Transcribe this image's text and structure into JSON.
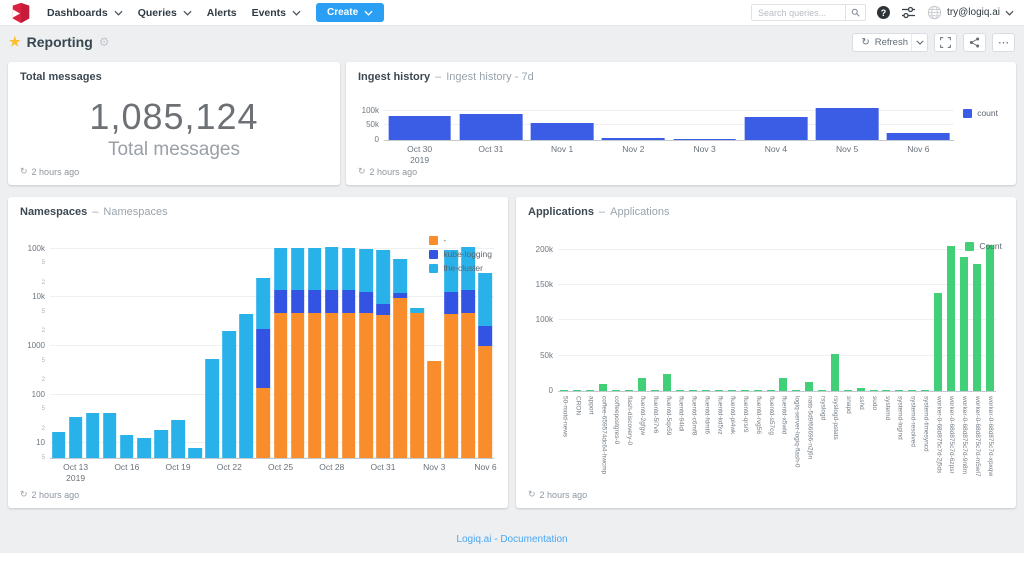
{
  "ui": {
    "dash": "–"
  },
  "icons": {
    "help": "?",
    "refresh": "↻",
    "ellipsis": "⋯",
    "star": "★",
    "gear": "⚙"
  },
  "nav": {
    "items": [
      {
        "label": "Dashboards"
      },
      {
        "label": "Queries"
      },
      {
        "label": "Alerts"
      },
      {
        "label": "Events"
      }
    ],
    "create_label": "Create",
    "search_placeholder": "Search queries...",
    "user": "try@logiq.ai"
  },
  "header": {
    "title": "Reporting",
    "refresh_label": "Refresh"
  },
  "panels": {
    "total_messages": {
      "title": "Total messages",
      "value": "1,085,124",
      "subtitle": "Total messages",
      "updated": "2 hours ago"
    },
    "ingest": {
      "title": "Ingest history",
      "subtitle": "Ingest history - 7d",
      "updated": "2 hours ago"
    },
    "namespaces": {
      "title": "Namespaces",
      "subtitle": "Namespaces",
      "updated": "2 hours ago"
    },
    "applications": {
      "title": "Applications",
      "subtitle": "Applications",
      "updated": "2 hours ago"
    }
  },
  "footer": {
    "link": "Logiq.ai - Documentation"
  },
  "colors": {
    "accent_blue": "#2b9ff3",
    "bar_blue": "#3b5ce4",
    "bar_cyan": "#29b2ea",
    "bar_orange": "#f98c2b",
    "bar_green": "#41d078",
    "star": "#fbc02d"
  },
  "chart_data": [
    {
      "id": "ingest-history",
      "type": "bar",
      "title": "Ingest history",
      "subtitle": "Ingest history - 7d",
      "categories": [
        "Oct 30|2019",
        "Oct 31",
        "Nov 1",
        "Nov 2",
        "Nov 3",
        "Nov 4",
        "Nov 5",
        "Nov 6"
      ],
      "values": [
        82000,
        88000,
        58000,
        7000,
        2000,
        80000,
        110000,
        25000
      ],
      "ylim": [
        0,
        130000
      ],
      "yticks": [
        {
          "v": 0,
          "label": "0"
        },
        {
          "v": 50000,
          "label": "50k"
        },
        {
          "v": 100000,
          "label": "100k"
        }
      ],
      "legend": [
        {
          "name": "count",
          "color": "#3b5ce4"
        }
      ],
      "bar_color": "#3b5ce4",
      "bar_pct": 88,
      "grid": true,
      "legend_position": "right"
    },
    {
      "id": "namespaces",
      "type": "stacked-bar",
      "title": "Namespaces",
      "subtitle": "Namespaces",
      "categories": [
        "Oct 12",
        "Oct 13",
        "Oct 14",
        "Oct 15",
        "Oct 16",
        "Oct 17",
        "Oct 18",
        "Oct 19",
        "Oct 20",
        "Oct 21",
        "Oct 22",
        "Oct 23",
        "Oct 24",
        "Oct 25",
        "Oct 26",
        "Oct 27",
        "Oct 28",
        "Oct 29",
        "Oct 30",
        "Oct 31",
        "Nov 1",
        "Nov 2",
        "Nov 3",
        "Nov 4",
        "Nov 5",
        "Nov 6"
      ],
      "series": [
        {
          "name": "-",
          "color": "#f98c2b",
          "values": [
            0,
            0,
            0,
            0,
            0,
            0,
            0,
            0,
            0,
            0,
            0,
            0,
            140,
            4700,
            4700,
            4700,
            4700,
            4700,
            4700,
            4300,
            9500,
            4700,
            500,
            4500,
            4700,
            1000
          ]
        },
        {
          "name": "kube-logging",
          "color": "#3353e3",
          "values": [
            0,
            0,
            0,
            0,
            0,
            0,
            0,
            0,
            0,
            0,
            0,
            0,
            2100,
            9300,
            9300,
            9300,
            9300,
            9300,
            8000,
            3000,
            2500,
            0,
            0,
            8500,
            9300,
            1600
          ]
        },
        {
          "name": "the-cluster",
          "color": "#29b2ea",
          "values": [
            17,
            35,
            42,
            43,
            15,
            13,
            19,
            30,
            8,
            550,
            2000,
            4500,
            22800,
            91000,
            90000,
            88000,
            92000,
            89000,
            85000,
            88000,
            48000,
            1300,
            0,
            82000,
            95000,
            29000
          ]
        }
      ],
      "ylog": true,
      "ymin": 5,
      "ymax": 130000,
      "yticks": [
        {
          "v": 100000,
          "label": "100k"
        },
        {
          "v": 50000,
          "label": "5",
          "minor": true
        },
        {
          "v": 20000,
          "label": "2",
          "minor": true
        },
        {
          "v": 10000,
          "label": "10k"
        },
        {
          "v": 5000,
          "label": "5",
          "minor": true
        },
        {
          "v": 2000,
          "label": "2",
          "minor": true
        },
        {
          "v": 1000,
          "label": "1000"
        },
        {
          "v": 500,
          "label": "5",
          "minor": true
        },
        {
          "v": 200,
          "label": "2",
          "minor": true
        },
        {
          "v": 100,
          "label": "100"
        },
        {
          "v": 50,
          "label": "5",
          "minor": true
        },
        {
          "v": 20,
          "label": "2",
          "minor": true
        },
        {
          "v": 10,
          "label": "10"
        },
        {
          "v": 5,
          "label": "5",
          "minor": true
        }
      ],
      "xticks": [
        {
          "i": 1,
          "label": "Oct 13|2019"
        },
        {
          "i": 4,
          "label": "Oct 16"
        },
        {
          "i": 7,
          "label": "Oct 19"
        },
        {
          "i": 10,
          "label": "Oct 22"
        },
        {
          "i": 13,
          "label": "Oct 25"
        },
        {
          "i": 16,
          "label": "Oct 28"
        },
        {
          "i": 19,
          "label": "Oct 31"
        },
        {
          "i": 22,
          "label": "Nov 3"
        },
        {
          "i": 25,
          "label": "Nov 6"
        }
      ],
      "legend": [
        {
          "name": "-",
          "color": "#f98c2b"
        },
        {
          "name": "kube-logging",
          "color": "#3353e3"
        },
        {
          "name": "the-cluster",
          "color": "#29b2ea"
        }
      ],
      "bar_pct": 80,
      "legend_position": "top-right-inside"
    },
    {
      "id": "applications",
      "type": "bar",
      "title": "Applications",
      "subtitle": "Applications",
      "categories": [
        "50-motd-news",
        "CRON",
        "apport",
        "coffee-659574dc64-hwcmp",
        "coffeepostgres-0",
        "flash-discovery-0",
        "fluentd-2gfgw",
        "fluentd-5l7v6",
        "fluentd-5qx59",
        "fluentd-94ldl",
        "fluentd-c6mf8",
        "fluentd-fdmt6",
        "fluentd-kd5vz",
        "fluentd-pl4wk",
        "fluentd-qrsr9",
        "fluentd-rvg56",
        "fluentd-s57cg",
        "fluentd-x5wld",
        "logiq-server-logiq-flash-0",
        "nats-5d9f66696-n2j6n",
        "rsyslogd",
        "rsyslogd-pstats",
        "snapd",
        "sshd",
        "sudo",
        "systemd",
        "systemd-logind",
        "systemd-resolved",
        "systemd-timesyncd",
        "worker-0-68d875c7d-2j5ds",
        "worker-0-68d875c7d-6zpsr",
        "worker-0-68d875c7d-9n8m",
        "worker-0-68d875c7d-m5wl7",
        "worker-0-68d875c7d-xpxqw"
      ],
      "values": [
        600,
        2000,
        400,
        9500,
        400,
        400,
        18000,
        400,
        24000,
        400,
        400,
        400,
        400,
        400,
        400,
        400,
        400,
        19000,
        800,
        13000,
        2000,
        52000,
        400,
        4000,
        400,
        400,
        400,
        400,
        1500,
        138000,
        205000,
        190000,
        180000,
        207000
      ],
      "ylim": [
        0,
        215000
      ],
      "yticks": [
        {
          "v": 0,
          "label": "0"
        },
        {
          "v": 50000,
          "label": "50k"
        },
        {
          "v": 100000,
          "label": "100k"
        },
        {
          "v": 150000,
          "label": "150k"
        },
        {
          "v": 200000,
          "label": "200k"
        }
      ],
      "legend": [
        {
          "name": "Count",
          "color": "#41d078"
        }
      ],
      "bar_color": "#41d078",
      "bar_pct": 62,
      "rotate_labels": true,
      "legend_position": "top-right"
    }
  ]
}
